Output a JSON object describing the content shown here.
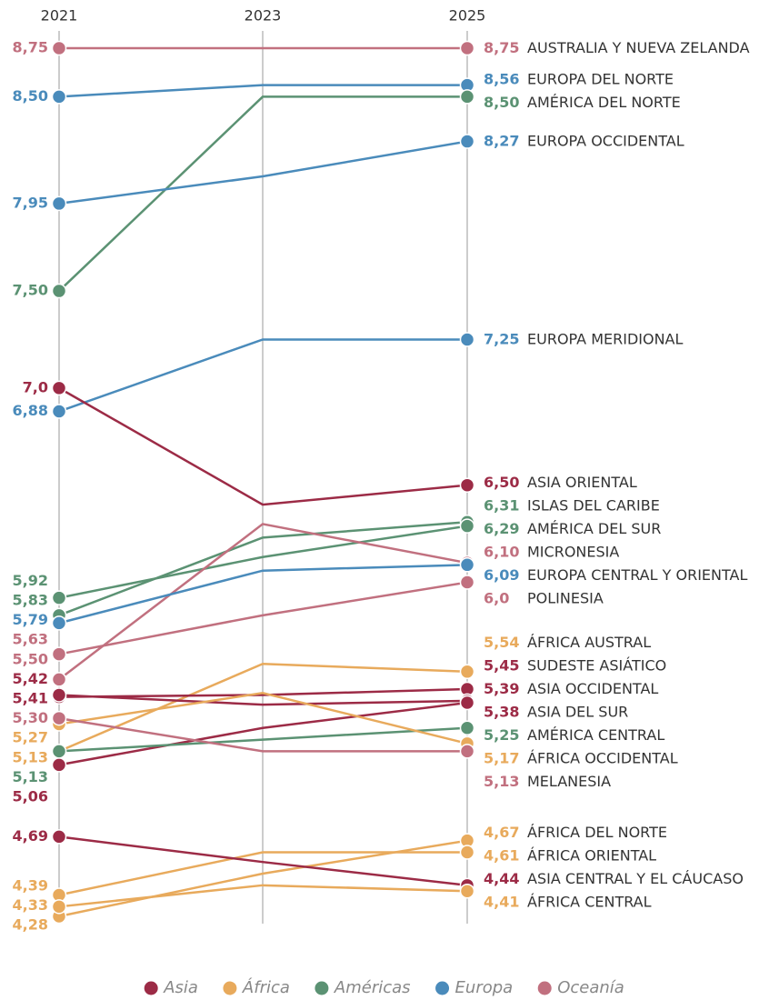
{
  "chart_data": {
    "type": "slope",
    "categories": [
      "2021",
      "2023",
      "2025"
    ],
    "ylim": [
      4.28,
      8.75
    ],
    "series": [
      {
        "name": "AUSTRALIA Y NUEVA ZELANDA",
        "color": "#c1707f",
        "values": [
          8.75,
          8.75,
          8.75
        ],
        "value_labels": [
          "8,75",
          null,
          "8,75"
        ]
      },
      {
        "name": "EUROPA DEL NORTE",
        "color": "#4a8bbb",
        "values": [
          8.5,
          8.56,
          8.56
        ],
        "value_labels": [
          "8,50",
          null,
          "8,56"
        ]
      },
      {
        "name": "AMÉRICA DEL NORTE",
        "color": "#5b9273",
        "values": [
          7.5,
          8.5,
          8.5
        ],
        "value_labels": [
          "7,50",
          null,
          "8,50"
        ]
      },
      {
        "name": "EUROPA OCCIDENTAL",
        "color": "#4a8bbb",
        "values": [
          7.95,
          8.09,
          8.27
        ],
        "value_labels": [
          "7,95",
          null,
          "8,27"
        ]
      },
      {
        "name": "EUROPA MERIDIONAL",
        "color": "#4a8bbb",
        "values": [
          6.88,
          7.25,
          7.25
        ],
        "value_labels": [
          "6,88",
          null,
          "7,25"
        ]
      },
      {
        "name": "ASIA ORIENTAL",
        "color": "#9c2b46",
        "values": [
          7.0,
          6.4,
          6.5
        ],
        "value_labels": [
          "7,0",
          null,
          "6,50"
        ]
      },
      {
        "name": "ISLAS DEL CARIBE",
        "color": "#5b9273",
        "values": [
          5.83,
          6.23,
          6.31
        ],
        "value_labels": [
          "5,83",
          null,
          "6,31"
        ]
      },
      {
        "name": "AMÉRICA DEL SUR",
        "color": "#5b9273",
        "values": [
          5.92,
          6.13,
          6.29
        ],
        "value_labels": [
          "5,92",
          null,
          "6,29"
        ]
      },
      {
        "name": "MICRONESIA",
        "color": "#c1707f",
        "values": [
          5.5,
          6.3,
          6.1
        ],
        "value_labels": [
          "5,50",
          null,
          "6,10"
        ]
      },
      {
        "name": "EUROPA CENTRAL Y ORIENTAL",
        "color": "#4a8bbb",
        "values": [
          5.79,
          6.06,
          6.09
        ],
        "value_labels": [
          "5,79",
          null,
          "6,09"
        ]
      },
      {
        "name": "POLINESIA",
        "color": "#c1707f",
        "values": [
          5.63,
          5.83,
          6.0
        ],
        "value_labels": [
          "5,63",
          null,
          "6,0"
        ]
      },
      {
        "name": "ÁFRICA AUSTRAL",
        "color": "#e8aa5c",
        "values": [
          5.13,
          5.58,
          5.54
        ],
        "value_labels": [
          "5,13",
          null,
          "5,54"
        ]
      },
      {
        "name": "SUDESTE ASIÁTICO",
        "color": "#9c2b46",
        "values": [
          5.41,
          5.42,
          5.45
        ],
        "value_labels": [
          "5,41",
          null,
          "5,45"
        ]
      },
      {
        "name": "ASIA OCCIDENTAL",
        "color": "#9c2b46",
        "values": [
          5.42,
          5.37,
          5.39
        ],
        "value_labels": [
          "5,42",
          null,
          "5,39"
        ]
      },
      {
        "name": "ASIA DEL SUR",
        "color": "#9c2b46",
        "values": [
          5.06,
          5.25,
          5.38
        ],
        "value_labels": [
          "5,06",
          null,
          "5,38"
        ]
      },
      {
        "name": "AMÉRICA CENTRAL",
        "color": "#5b9273",
        "values": [
          5.13,
          5.19,
          5.25
        ],
        "value_labels": [
          "5,13",
          null,
          "5,25"
        ]
      },
      {
        "name": "ÁFRICA OCCIDENTAL",
        "color": "#e8aa5c",
        "values": [
          5.27,
          5.43,
          5.17
        ],
        "value_labels": [
          "5,27",
          null,
          "5,17"
        ]
      },
      {
        "name": "MELANESIA",
        "color": "#c1707f",
        "values": [
          5.3,
          5.13,
          5.13
        ],
        "value_labels": [
          "5,30",
          null,
          "5,13"
        ]
      },
      {
        "name": "ÁFRICA DEL NORTE",
        "color": "#e8aa5c",
        "values": [
          4.28,
          4.5,
          4.67
        ],
        "value_labels": [
          "4,28",
          null,
          "4,67"
        ]
      },
      {
        "name": "ÁFRICA ORIENTAL",
        "color": "#e8aa5c",
        "values": [
          4.39,
          4.61,
          4.61
        ],
        "value_labels": [
          "4,39",
          null,
          "4,61"
        ]
      },
      {
        "name": "ASIA CENTRAL Y EL CÁUCASO",
        "color": "#9c2b46",
        "values": [
          4.69,
          4.56,
          4.44
        ],
        "value_labels": [
          "4,69",
          null,
          "4,44"
        ]
      },
      {
        "name": "ÁFRICA CENTRAL",
        "color": "#e8aa5c",
        "values": [
          4.33,
          4.44,
          4.41
        ],
        "value_labels": [
          "4,33",
          null,
          "4,41"
        ]
      }
    ],
    "legend": [
      {
        "name": "Asia",
        "color": "#9c2b46"
      },
      {
        "name": "África",
        "color": "#e8aa5c"
      },
      {
        "name": "Américas",
        "color": "#5b9273"
      },
      {
        "name": "Europa",
        "color": "#4a8bbb"
      },
      {
        "name": "Oceanía",
        "color": "#c1707f"
      }
    ]
  }
}
